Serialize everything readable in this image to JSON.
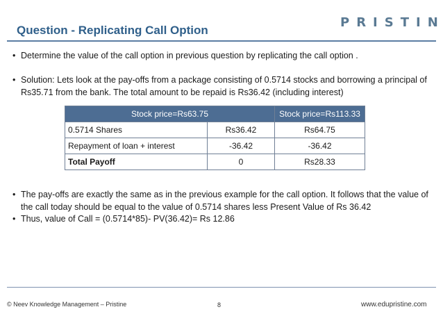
{
  "header": {
    "title": "Question - Replicating Call Option",
    "logo_text": "PRISTINE"
  },
  "bullets": [
    "Determine the value of the call option in previous question by replicating the call option .",
    "Solution: Lets look at the pay-offs from a package consisting of 0.5714 stocks and borrowing a principal of Rs35.71 from the bank. The total amount to be repaid is Rs36.42 (including interest)",
    "The pay-offs are exactly the same as in the previous example for the call option. It follows that the value of the call today should be equal to the value of 0.5714 shares less Present Value of Rs 36.42",
    "Thus, value of Call = (0.5714*85)- PV(36.42)= Rs 12.86"
  ],
  "bullet_symbol": "•",
  "table": {
    "header": [
      "Stock price=Rs63.75",
      "Stock price=Rs113.33"
    ],
    "rows": [
      [
        "0.5714 Shares",
        "Rs36.42",
        "Rs64.75"
      ],
      [
        "Repayment of loan + interest",
        "-36.42",
        "-36.42"
      ],
      [
        "Total Payoff",
        "0",
        "Rs28.33"
      ]
    ]
  },
  "footer": {
    "copyright": "© Neev Knowledge Management – Pristine",
    "page_number": "8",
    "website": "www.edupristine.com"
  },
  "colors": {
    "title": "#2f5f8a",
    "table_header_bg": "#4d6d93",
    "rule": "#5b7da3"
  }
}
